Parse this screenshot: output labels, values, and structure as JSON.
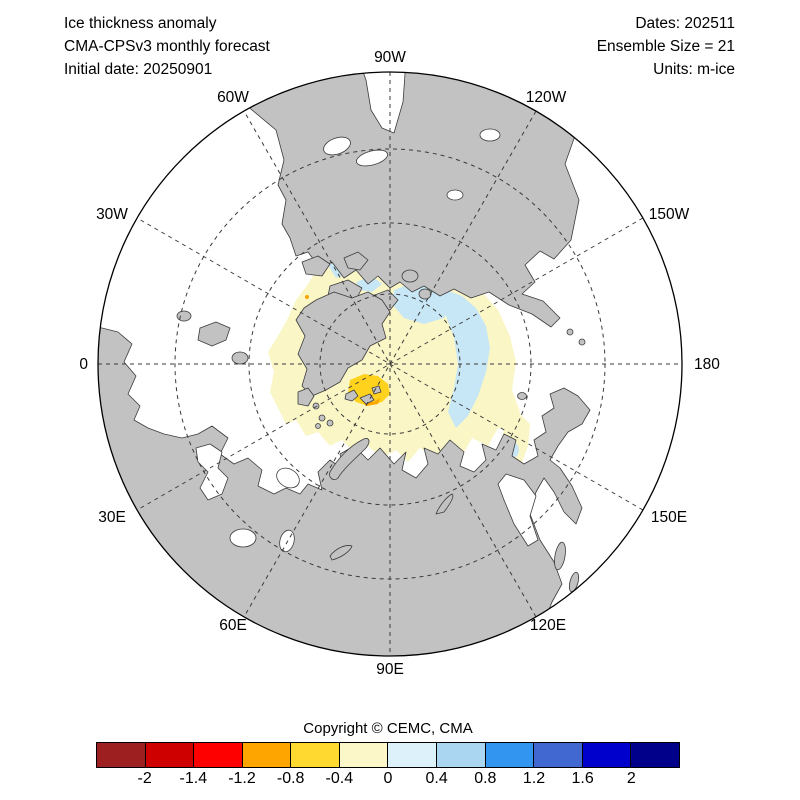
{
  "title_block": {
    "line1": "Ice thickness anomaly",
    "line2": "CMA-CPSv3 monthly forecast",
    "line3": "Initial date: 20250901"
  },
  "info_block": {
    "line1": "Dates: 202511",
    "line2": "Ensemble Size = 21",
    "line3": "Units: m-ice"
  },
  "map": {
    "projection": "north polar stereographic, 0E at left, 90W at top, 180 at right, 90E at bottom",
    "longitude_labels": [
      "90W",
      "120W",
      "150W",
      "180",
      "150E",
      "120E",
      "90E",
      "60E",
      "30E",
      "0",
      "30W",
      "60W"
    ],
    "fill_colors": {
      "land": "#c2c2c2",
      "ocean": "#ffffff",
      "ice_neg_weak": "#faf6c6",
      "ice_pos_weak": "#c7e7f6",
      "ice_neg_mod": "#ffd21e",
      "ice_neg_strong": "#ffa500"
    }
  },
  "footer": {
    "copyright": "Copyright © CEMC, CMA"
  },
  "colorbar": {
    "colors": [
      "#9e1f1f",
      "#ce0000",
      "#ff0000",
      "#ffa500",
      "#ffd930",
      "#fbf7c8",
      "#dcf1fa",
      "#aad6f2",
      "#3295f0",
      "#4167d1",
      "#0000cc",
      "#00008b"
    ],
    "ticks": [
      "-2",
      "-1.4",
      "-1.2",
      "-0.8",
      "-0.4",
      "0",
      "0.4",
      "0.8",
      "1.2",
      "1.6",
      "2"
    ]
  },
  "chart_data": {
    "type": "heatmap",
    "title": "Ice thickness anomaly",
    "subtitle": "CMA-CPSv3 monthly forecast",
    "units": "m-ice",
    "legend_ticks": [
      -2,
      -1.4,
      -1.2,
      -0.8,
      -0.4,
      0,
      0.4,
      0.8,
      1.2,
      1.6,
      2
    ],
    "legend_colors": [
      "#9e1f1f",
      "#ce0000",
      "#ff0000",
      "#ffa500",
      "#ffd930",
      "#fbf7c8",
      "#dcf1fa",
      "#aad6f2",
      "#3295f0",
      "#4167d1",
      "#0000cc",
      "#00008b"
    ],
    "regions": [
      {
        "area": "central Arctic Ocean",
        "anomaly": "-0.4 to 0 (pale yellow)"
      },
      {
        "area": "East Siberian / Chukchi sector and Canadian Archipelago channels",
        "anomaly": "0 to 0.4 (pale blue)"
      },
      {
        "area": "small area near Svalbard / Franz Josef Land",
        "anomaly": "-1.2 to -0.4 (gold with orange core)"
      }
    ]
  }
}
